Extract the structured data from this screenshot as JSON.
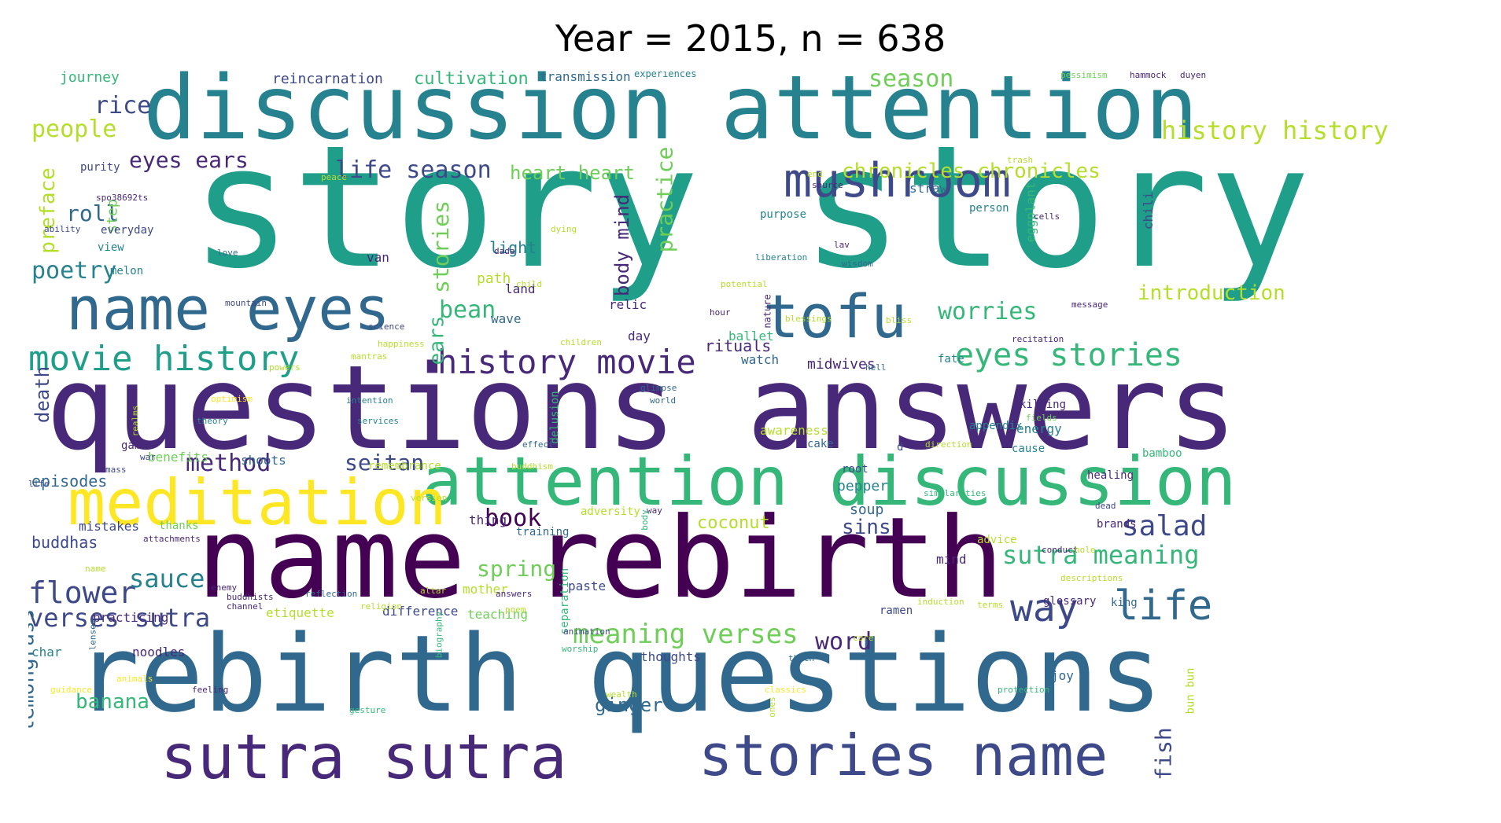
{
  "title": "Year = 2015, n = 638",
  "words": [
    "story story",
    "questions answers",
    "name rebirth",
    "rebirth questions",
    "discussion",
    "attention",
    "attention discussion",
    "name eyes",
    "meditation",
    "sutra sutra",
    "stories name",
    "tofu",
    "mushroom",
    "movie history",
    "history movie",
    "life",
    "way",
    "flower",
    "verses sutra",
    "sauce",
    "meaning verses",
    "eyes stories",
    "salad",
    "sutra meaning",
    "history history",
    "introduction",
    "life season",
    "book",
    "rice",
    "people",
    "poetry",
    "roll",
    "eyes ears",
    "preface",
    "death",
    "lemongrass",
    "method",
    "seitan",
    "bean",
    "ears",
    "stories",
    "practice",
    "body mind",
    "heart heart",
    "chronicles chronicles",
    "season",
    "worries",
    "sins",
    "word",
    "fish",
    "banana",
    "ginger",
    "spring",
    "buddhas",
    "episodes",
    "coconut",
    "cultivation",
    "reincarnation",
    "journey",
    "transmission",
    "experiences",
    "pessimism",
    "hammock",
    "duyen",
    "rituals",
    "midwives",
    "watch",
    "light",
    "path",
    "van",
    "land",
    "straw",
    "eggplant",
    "chili",
    "soup",
    "pepper",
    "energy",
    "appendix",
    "cake",
    "root",
    "healing",
    "brands",
    "mind",
    "ramen",
    "glossary",
    "king",
    "paste",
    "mother",
    "teaching",
    "difference",
    "etiquette",
    "practicing",
    "char",
    "noodles",
    "thoughts",
    "mistakes",
    "thanks",
    "benefits",
    "shoots",
    "wave",
    "step",
    "everyday",
    "view",
    "melon",
    "purity",
    "awareness",
    "cause",
    "bamboo",
    "d",
    "joy",
    "bun bun",
    "thing",
    "training",
    "adversity",
    "way",
    "buddhism",
    "attachments",
    "buddhists",
    "channel",
    "reflection",
    "religion",
    "altar",
    "answers",
    "separation",
    "worship",
    "animation",
    "biography",
    "lenses",
    "wealth",
    "protection",
    "classics",
    "induction",
    "terms",
    "thich",
    "core",
    "animals",
    "guidance",
    "feeling",
    "gesture",
    "ones",
    "poem",
    "ballet",
    "day",
    "relic",
    "nature",
    "blessings",
    "hour",
    "potential",
    "liberation",
    "lav",
    "wisdom",
    "purpose",
    "end",
    "source",
    "person",
    "cells",
    "trash",
    "message",
    "recitation",
    "fate",
    "hell",
    "bliss",
    "killing",
    "fields",
    "direction",
    "effect",
    "delusion",
    "glimpse",
    "world",
    "services",
    "intention",
    "theory",
    "realms",
    "optimism",
    "powers",
    "mantras",
    "happiness",
    "science",
    "children",
    "mountain",
    "love",
    "child",
    "dada",
    "dying",
    "peace",
    "spo38692ts",
    "ability",
    "war",
    "game",
    "mass",
    "life",
    "remembrance",
    "version",
    "similarities",
    "name",
    "enemy",
    "conduct",
    "advice",
    "hole",
    "dead",
    "descriptions",
    "body"
  ],
  "palette": [
    "#440154",
    "#482878",
    "#3e4989",
    "#31688e",
    "#26828e",
    "#1f9e89",
    "#35b779",
    "#6ece58",
    "#b5de2b",
    "#fde725"
  ]
}
